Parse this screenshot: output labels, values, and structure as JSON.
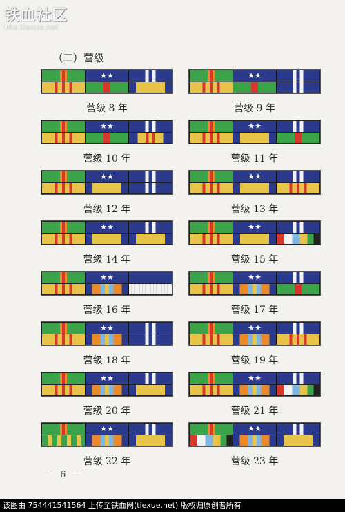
{
  "watermark": {
    "main": "铁血社区",
    "sub": "bbs.tiexue.net"
  },
  "section_title": "（二）营级",
  "colors": {
    "green": "#3da34a",
    "red": "#d6392c",
    "orange": "#ea8a2b",
    "yellow": "#e8c34a",
    "navy": "#2c3a8c",
    "white": "#f2f2f2",
    "light_blue": "#7fb6df"
  },
  "medals": [
    {
      "label": "营级 8 年",
      "ribbons": [
        [
          "gr_red",
          "yellow_red"
        ],
        [
          "navy_stars",
          "green_red"
        ],
        [
          "navy_white",
          "navy_yellow"
        ]
      ]
    },
    {
      "label": "营级 9 年",
      "ribbons": [
        [
          "gr_red",
          "yellow_red"
        ],
        [
          "navy_stars",
          "green_red"
        ],
        [
          "navy_white",
          "navy_white"
        ]
      ]
    },
    {
      "label": "营级 10 年",
      "ribbons": [
        [
          "gr_red",
          "yellow_red"
        ],
        [
          "navy_stars",
          "green_red"
        ],
        [
          "navy_white",
          "navy_yellow_red"
        ]
      ]
    },
    {
      "label": "营级 11 年",
      "ribbons": [
        [
          "gr_red",
          "yellow_red"
        ],
        [
          "navy_stars",
          "navy_yellow"
        ],
        [
          "navy_white",
          "green_red"
        ]
      ]
    },
    {
      "label": "营级 12 年",
      "ribbons": [
        [
          "gr_red",
          "yellow_red"
        ],
        [
          "navy_stars",
          "navy_yellow"
        ],
        [
          "navy_white",
          "navy_white"
        ]
      ]
    },
    {
      "label": "营级 13 年",
      "ribbons": [
        [
          "gr_red",
          "yellow_red"
        ],
        [
          "navy_stars",
          "navy_yellow"
        ],
        [
          "navy_white",
          "yellow_red"
        ]
      ]
    },
    {
      "label": "营级 14 年",
      "ribbons": [
        [
          "gr_red",
          "yellow_red"
        ],
        [
          "navy_stars",
          "navy_yellow"
        ],
        [
          "navy_white",
          "navy_yellow"
        ]
      ]
    },
    {
      "label": "营级 15 年",
      "ribbons": [
        [
          "gr_red",
          "yellow_red"
        ],
        [
          "navy_stars",
          "navy_yellow"
        ],
        [
          "navy_white",
          "multi"
        ]
      ]
    },
    {
      "label": "营级 16 年",
      "ribbons": [
        [
          "gr_red",
          "yellow_red"
        ],
        [
          "navy_stars",
          "navy_orange_blue"
        ],
        [
          "navy",
          "white_stripes"
        ]
      ]
    },
    {
      "label": "营级 17 年",
      "ribbons": [
        [
          "gr_red",
          "yellow_red"
        ],
        [
          "navy_stars",
          "navy_orange_blue"
        ],
        [
          "navy_white",
          "green_red"
        ]
      ]
    },
    {
      "label": "营级 18 年",
      "ribbons": [
        [
          "gr_red",
          "yellow_red"
        ],
        [
          "navy_stars",
          "navy_orange_blue"
        ],
        [
          "navy_white",
          "navy_white"
        ]
      ]
    },
    {
      "label": "营级 19 年",
      "ribbons": [
        [
          "gr_red",
          "yellow_red"
        ],
        [
          "navy_stars",
          "navy_orange_blue"
        ],
        [
          "navy_white",
          "yellow_red"
        ]
      ]
    },
    {
      "label": "营级 20 年",
      "ribbons": [
        [
          "gr_red",
          "yellow_red"
        ],
        [
          "navy_stars",
          "navy_orange_blue"
        ],
        [
          "navy_white",
          "navy_yellow"
        ]
      ]
    },
    {
      "label": "营级 21 年",
      "ribbons": [
        [
          "gr_red",
          "yellow_red"
        ],
        [
          "navy_stars",
          "navy_orange_blue"
        ],
        [
          "navy_white",
          "multi"
        ]
      ]
    },
    {
      "label": "营级 22 年",
      "ribbons": [
        [
          "gr_red",
          "yellow_green"
        ],
        [
          "navy_stars",
          "navy_orange_blue"
        ],
        [
          "navy_white",
          "navy_yellow"
        ]
      ]
    },
    {
      "label": "营级 23 年",
      "ribbons": [
        [
          "gr_red",
          "multi"
        ],
        [
          "navy_stars",
          "navy_orange_blue"
        ],
        [
          "navy_white",
          "navy_yellow"
        ]
      ]
    }
  ],
  "page_number": "— 6 —",
  "footer": "该图由 754441541564 上传至铁血网(tiexue.net) 版权归原创者所有"
}
